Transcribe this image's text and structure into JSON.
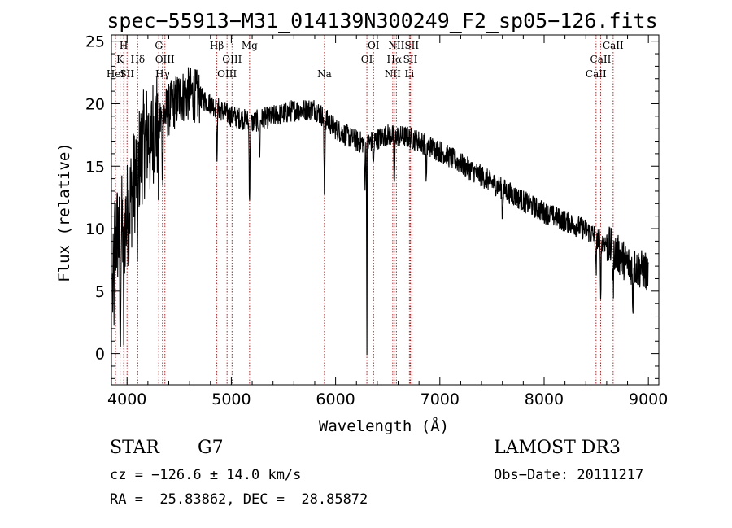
{
  "chart_data": {
    "type": "line",
    "title": "spec−55913−M31_014139N300249_F2_sp05−126.fits",
    "xlabel": "Wavelength (Å)",
    "ylabel": "Flux (relative)",
    "xlim": [
      3850,
      9100
    ],
    "ylim": [
      -2.5,
      25.5
    ],
    "xticks": [
      4000,
      5000,
      6000,
      7000,
      8000,
      9000
    ],
    "yticks": [
      0,
      5,
      10,
      15,
      20,
      25
    ],
    "continuum": {
      "x": [
        3860,
        3900,
        3950,
        4000,
        4050,
        4100,
        4150,
        4200,
        4300,
        4400,
        4500,
        4600,
        4700,
        4800,
        4900,
        5000,
        5100,
        5200,
        5300,
        5400,
        5500,
        5600,
        5700,
        5800,
        5900,
        6000,
        6100,
        6200,
        6300,
        6400,
        6500,
        6600,
        6700,
        6800,
        6900,
        7000,
        7200,
        7400,
        7600,
        7800,
        8000,
        8200,
        8400,
        8600,
        8800,
        9000
      ],
      "y": [
        9,
        9.5,
        10,
        11,
        13,
        15,
        16.5,
        17.5,
        18.5,
        19.5,
        20.5,
        20.8,
        20.5,
        20,
        19.5,
        19,
        18.8,
        18.5,
        18.8,
        19,
        19.2,
        19.5,
        19.5,
        19.6,
        18.8,
        18,
        17.5,
        17,
        16.8,
        17.2,
        17.5,
        17.4,
        17.3,
        17,
        16.6,
        16.2,
        15.2,
        14.2,
        13.2,
        12.2,
        11.3,
        10.6,
        9.9,
        8.8,
        7.2,
        6.5
      ]
    },
    "absorption_features": [
      {
        "x": 3934,
        "depth": 9
      },
      {
        "x": 3968,
        "depth": 8
      },
      {
        "x": 4101,
        "depth": 5
      },
      {
        "x": 4226,
        "depth": 3
      },
      {
        "x": 4300,
        "depth": 5
      },
      {
        "x": 4340,
        "depth": 4
      },
      {
        "x": 4861,
        "depth": 4
      },
      {
        "x": 5175,
        "depth": 6
      },
      {
        "x": 5270,
        "depth": 3
      },
      {
        "x": 5893,
        "depth": 6
      },
      {
        "x": 6282,
        "depth": 3
      },
      {
        "x": 6300,
        "depth": 16
      },
      {
        "x": 6363,
        "depth": 2
      },
      {
        "x": 6563,
        "depth": 4
      },
      {
        "x": 6870,
        "depth": 3
      },
      {
        "x": 7600,
        "depth": 2
      },
      {
        "x": 8498,
        "depth": 3
      },
      {
        "x": 8542,
        "depth": 4
      },
      {
        "x": 8662,
        "depth": 3
      },
      {
        "x": 8850,
        "depth": 3
      }
    ],
    "spectral_lines": [
      {
        "x": 3933,
        "label": "K",
        "row": 2
      },
      {
        "x": 3968,
        "label": "H",
        "row": 1
      },
      {
        "x": 3889,
        "label": "HeI",
        "row": 3
      },
      {
        "x": 4000,
        "label": "SII",
        "row": 3
      },
      {
        "x": 4102,
        "label": "Hδ",
        "row": 2
      },
      {
        "x": 4304,
        "label": "G",
        "row": 1
      },
      {
        "x": 4340,
        "label": "Hγ",
        "row": 3
      },
      {
        "x": 4363,
        "label": "OIII",
        "row": 2
      },
      {
        "x": 4861,
        "label": "Hβ",
        "row": 1
      },
      {
        "x": 4959,
        "label": "OIII",
        "row": 3
      },
      {
        "x": 5007,
        "label": "OIII",
        "row": 2
      },
      {
        "x": 5175,
        "label": "Mg",
        "row": 1
      },
      {
        "x": 5893,
        "label": "Na",
        "row": 3
      },
      {
        "x": 6300,
        "label": "OI",
        "row": 2
      },
      {
        "x": 6364,
        "label": "OI",
        "row": 1
      },
      {
        "x": 6548,
        "label": "NII",
        "row": 3
      },
      {
        "x": 6563,
        "label": "Hα",
        "row": 2
      },
      {
        "x": 6583,
        "label": "NII",
        "row": 1
      },
      {
        "x": 6708,
        "label": "Li",
        "row": 3
      },
      {
        "x": 6717,
        "label": "SII",
        "row": 2
      },
      {
        "x": 6731,
        "label": "SII",
        "row": 1
      },
      {
        "x": 8498,
        "label": "CaII",
        "row": 3
      },
      {
        "x": 8542,
        "label": "CaII",
        "row": 2
      },
      {
        "x": 8662,
        "label": "CaII",
        "row": 1
      }
    ],
    "line_color": "#000000",
    "marker_color": "#b22222"
  },
  "info": {
    "class": "STAR",
    "subclass": "G7",
    "survey": "LAMOST DR3",
    "redshift": "cz = −126.6 ± 14.0 km/s",
    "obs_date": "Obs−Date: 20111217",
    "coords": "RA =  25.83862, DEC =  28.85872"
  }
}
